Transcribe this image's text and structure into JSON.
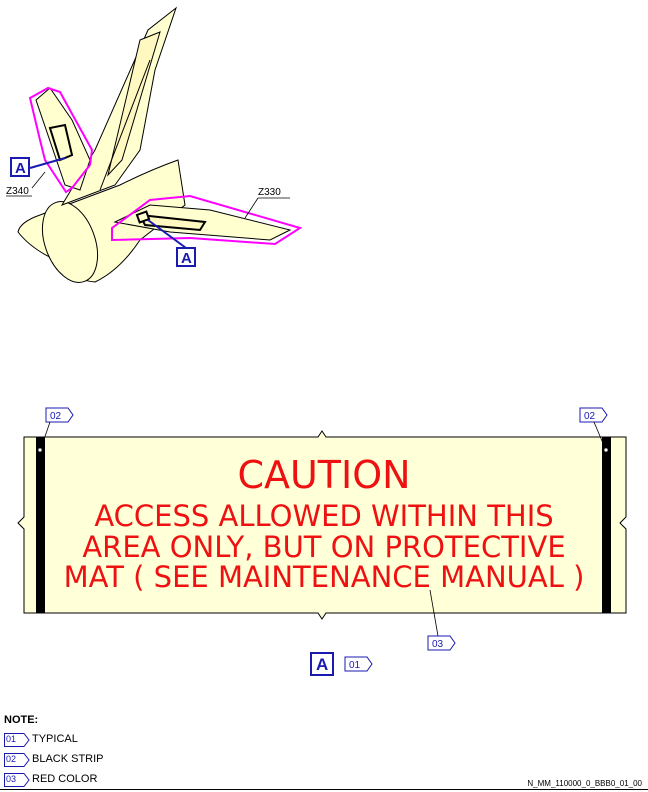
{
  "zone_labels": {
    "fin": "Z340",
    "stabilizer": "Z330"
  },
  "view_marker": "A",
  "placard": {
    "title": "CAUTION",
    "lines": [
      "ACCESS ALLOWED WITHIN THIS",
      "AREA ONLY, BUT ON PROTECTIVE",
      "MAT ( SEE MAINTENANCE MANUAL )"
    ],
    "text_color": "#ee1111",
    "bg_color": "#ffffd8"
  },
  "callouts": {
    "left_strip": "02",
    "right_strip": "02",
    "text": "03",
    "view_ref": "01"
  },
  "note": {
    "title": "NOTE:",
    "items": [
      {
        "code": "01",
        "text": "TYPICAL"
      },
      {
        "code": "02",
        "text": "BLACK STRIP"
      },
      {
        "code": "03",
        "text": "RED COLOR"
      }
    ]
  },
  "doc_ref": "N_MM_110000_0_BBB0_01_00",
  "colors": {
    "outline_magenta": "#ff00ff",
    "callout_blue": "#1a1ab0",
    "part_fill": "#ffffd0"
  }
}
